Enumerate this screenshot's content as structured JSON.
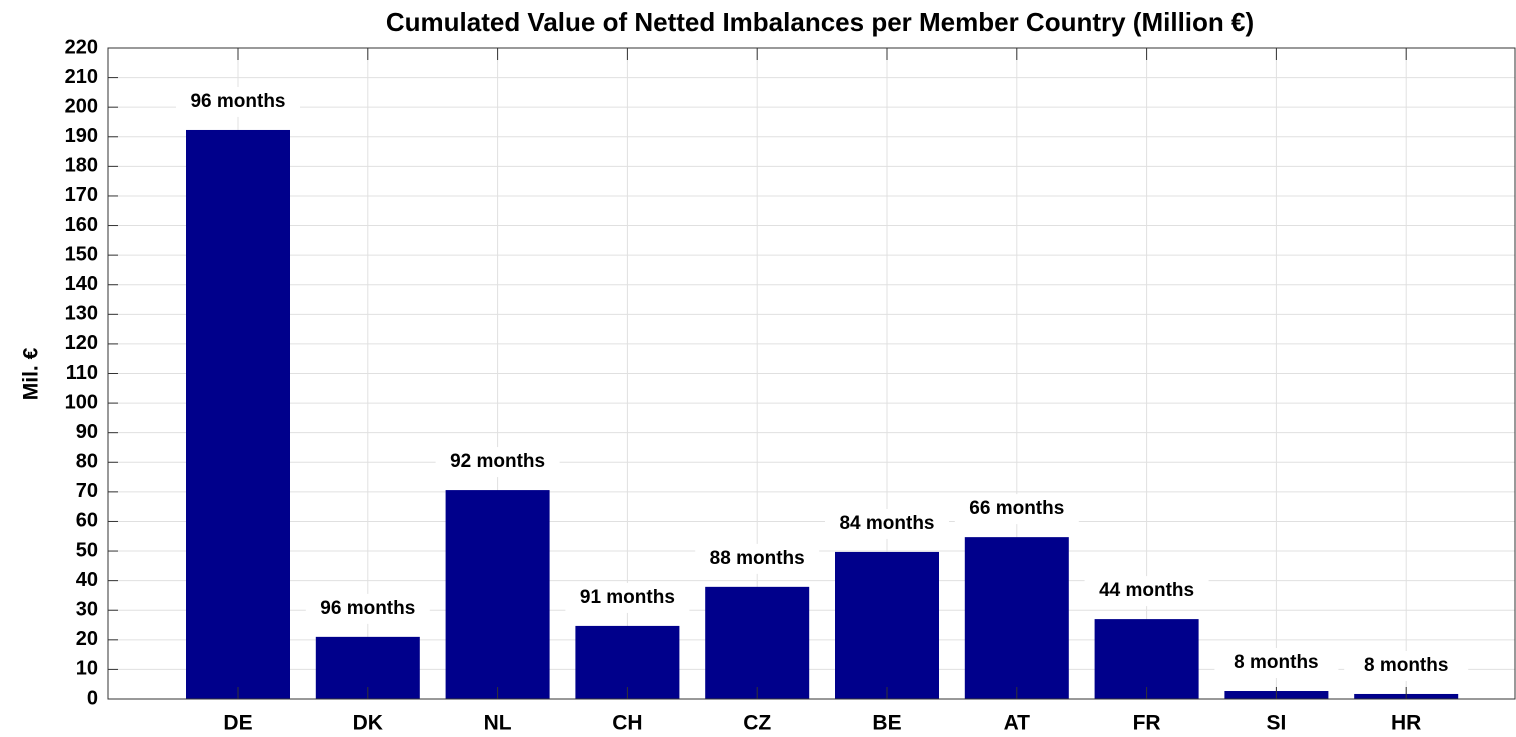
{
  "chart_data": {
    "type": "bar",
    "title": "Cumulated Value of Netted Imbalances per Member Country (Million €)",
    "y_label": "Mil. €",
    "categories": [
      "DE",
      "DK",
      "NL",
      "CH",
      "CZ",
      "BE",
      "AT",
      "FR",
      "SI",
      "HR"
    ],
    "values": [
      192.3,
      21,
      70.6,
      24.7,
      37.9,
      49.7,
      54.7,
      27,
      2.7,
      1.7
    ],
    "bar_labels": [
      "96 months",
      "96 months",
      "92 months",
      "91 months",
      "88 months",
      "84 months",
      "66 months",
      "44 months",
      "8 months",
      "8 months"
    ],
    "color": "#00008b",
    "ylim": [
      0,
      220
    ],
    "yticks": [
      0,
      10,
      20,
      30,
      40,
      50,
      60,
      70,
      80,
      90,
      100,
      110,
      120,
      130,
      140,
      150,
      160,
      170,
      180,
      190,
      200,
      210,
      220
    ],
    "grid": true
  }
}
